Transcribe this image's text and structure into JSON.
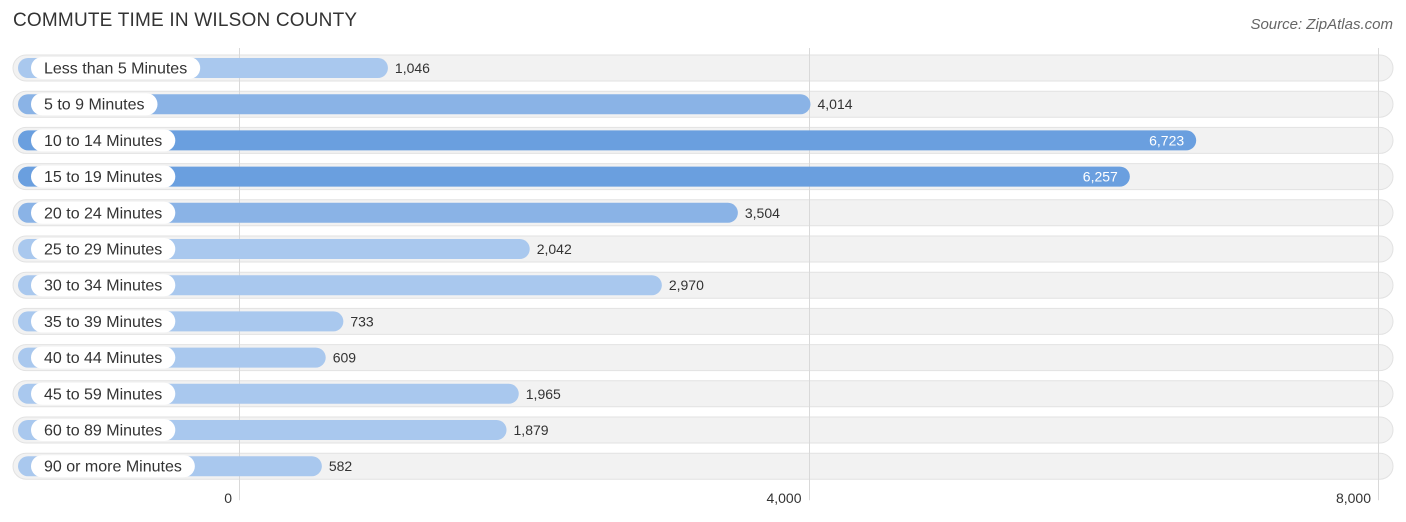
{
  "header": {
    "title": "COMMUTE TIME IN WILSON COUNTY",
    "source": "Source: ZipAtlas.com"
  },
  "chart_data": {
    "type": "bar",
    "orientation": "horizontal",
    "title": "COMMUTE TIME IN WILSON COUNTY",
    "xlabel": "",
    "ylabel": "",
    "xlim": [
      0,
      8000
    ],
    "grid": true,
    "categories": [
      "Less than 5 Minutes",
      "5 to 9 Minutes",
      "10 to 14 Minutes",
      "15 to 19 Minutes",
      "20 to 24 Minutes",
      "25 to 29 Minutes",
      "30 to 34 Minutes",
      "35 to 39 Minutes",
      "40 to 44 Minutes",
      "45 to 59 Minutes",
      "60 to 89 Minutes",
      "90 or more Minutes"
    ],
    "values": [
      1046,
      4014,
      6723,
      6257,
      3504,
      2042,
      2970,
      733,
      609,
      1965,
      1879,
      582
    ],
    "value_labels": [
      "1,046",
      "4,014",
      "6,723",
      "6,257",
      "3,504",
      "2,042",
      "2,970",
      "733",
      "609",
      "1,965",
      "1,879",
      "582"
    ],
    "ticks": [
      0,
      4000,
      8000
    ],
    "tick_labels": [
      "0",
      "4,000",
      "8,000"
    ],
    "colors": {
      "bar_light": "#a9c8ee",
      "bar_mid": "#8ab3e6",
      "bar_strong": "#6a9fdf"
    }
  }
}
